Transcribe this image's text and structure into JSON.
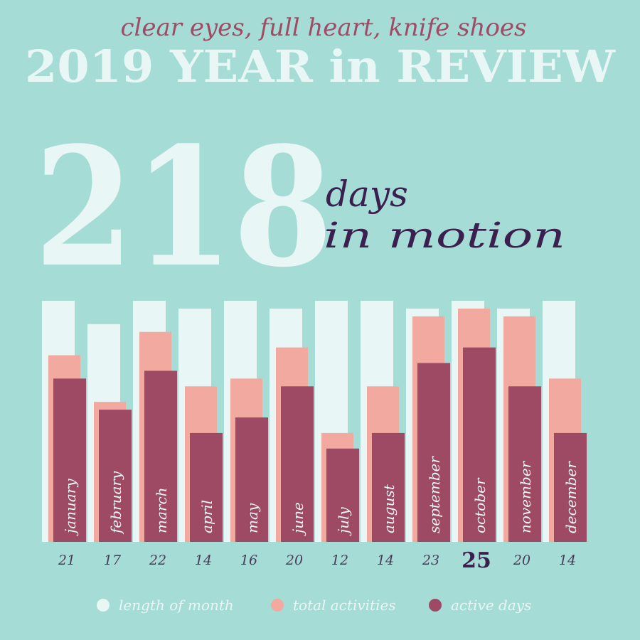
{
  "chart_data": {
    "type": "bar",
    "subtitle": "clear eyes, full heart, knife shoes",
    "title": "2019 YEAR in REVIEW",
    "headline": {
      "value": "218",
      "line1": "days",
      "line2": "in motion"
    },
    "categories": [
      "january",
      "february",
      "march",
      "april",
      "may",
      "june",
      "july",
      "august",
      "september",
      "october",
      "november",
      "december"
    ],
    "series": [
      {
        "name": "length of month",
        "color": "#e8f6f5",
        "values": [
          31,
          28,
          31,
          30,
          31,
          30,
          31,
          31,
          30,
          31,
          30,
          31
        ]
      },
      {
        "name": "total activities",
        "color": "#f2a9a0",
        "values": [
          24,
          18,
          27,
          20,
          21,
          25,
          14,
          20,
          29,
          30,
          29,
          21
        ]
      },
      {
        "name": "active days",
        "color": "#9e4a64",
        "values": [
          21,
          17,
          22,
          14,
          16,
          20,
          12,
          14,
          23,
          25,
          20,
          14
        ]
      }
    ],
    "highlight": 9
  }
}
